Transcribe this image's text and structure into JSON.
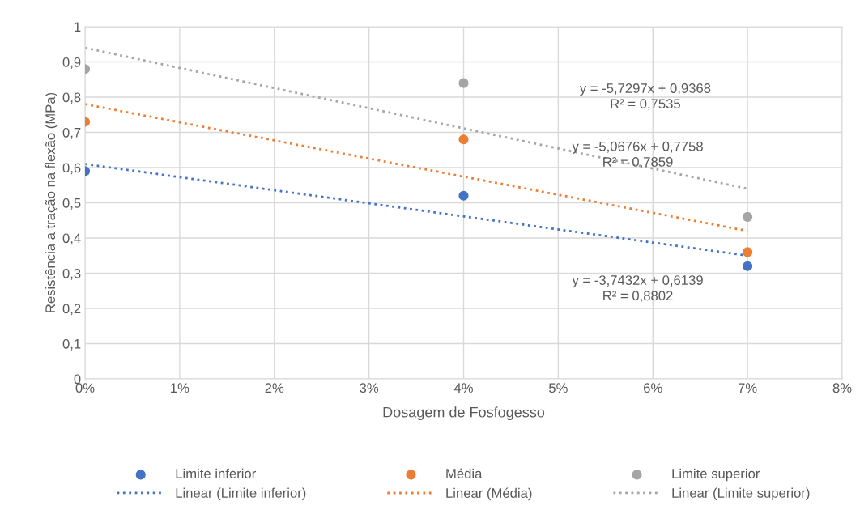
{
  "chart_data": {
    "type": "scatter",
    "xlabel": "Dosagem de Fosfogesso",
    "ylabel": "Resistência a tração na flexão (MPa)",
    "xlim": [
      0,
      0.08
    ],
    "xticks": [
      {
        "value": 0,
        "label": "0%"
      },
      {
        "value": 0.01,
        "label": "1%"
      },
      {
        "value": 0.02,
        "label": "2%"
      },
      {
        "value": 0.03,
        "label": "3%"
      },
      {
        "value": 0.04,
        "label": "4%"
      },
      {
        "value": 0.05,
        "label": "5%"
      },
      {
        "value": 0.06,
        "label": "6%"
      },
      {
        "value": 0.07,
        "label": "7%"
      },
      {
        "value": 0.08,
        "label": "8%"
      }
    ],
    "ylim": [
      0,
      1
    ],
    "yticks": [
      0,
      {
        "value": 0.1,
        "label": "0,1"
      },
      {
        "value": 0.2,
        "label": "0,2"
      },
      {
        "value": 0.3,
        "label": "0,3"
      },
      {
        "value": 0.4,
        "label": "0,4"
      },
      {
        "value": 0.5,
        "label": "0,5"
      },
      {
        "value": 0.6,
        "label": "0,6"
      },
      {
        "value": 0.7,
        "label": "0,7"
      },
      {
        "value": 0.8,
        "label": "0,8"
      },
      {
        "value": 0.9,
        "label": "0,9"
      },
      1
    ],
    "grid": true,
    "legend": "bottom",
    "series": [
      {
        "name": "Limite inferior",
        "color": "#4472c4",
        "x": [
          0,
          0.04,
          0.07
        ],
        "values": [
          0.59,
          0.52,
          0.32
        ],
        "marker": "circle"
      },
      {
        "name": "Média",
        "color": "#ed7d31",
        "x": [
          0,
          0.04,
          0.07
        ],
        "values": [
          0.73,
          0.68,
          0.36
        ],
        "marker": "circle"
      },
      {
        "name": "Limite superior",
        "color": "#a5a5a5",
        "x": [
          0,
          0.04,
          0.07
        ],
        "values": [
          0.88,
          0.84,
          0.46
        ],
        "marker": "circle"
      },
      {
        "name": "Linear (Limite inferior)",
        "type": "line",
        "line_style": "dotted",
        "marker": "none",
        "color": "#4472c4",
        "x": [
          0,
          0.07
        ],
        "values": [
          0.61,
          0.35
        ]
      },
      {
        "name": "Linear (Média)",
        "type": "line",
        "line_style": "dotted",
        "marker": "none",
        "color": "#ed7d31",
        "x": [
          0,
          0.07
        ],
        "values": [
          0.78,
          0.42
        ]
      },
      {
        "name": "Linear (Limite superior)",
        "type": "line",
        "line_style": "dotted",
        "marker": "none",
        "color": "#a5a5a5",
        "x": [
          0,
          0.07
        ],
        "values": [
          0.94,
          0.54
        ]
      }
    ],
    "annotations": [
      "y = -5,7297x + 0,9368\nR² = 0,7535",
      "y = -5,0676x + 0,7758\nR² = 0,7859",
      "y = -3,7432x + 0,6139\nR² = 0,8802"
    ]
  }
}
